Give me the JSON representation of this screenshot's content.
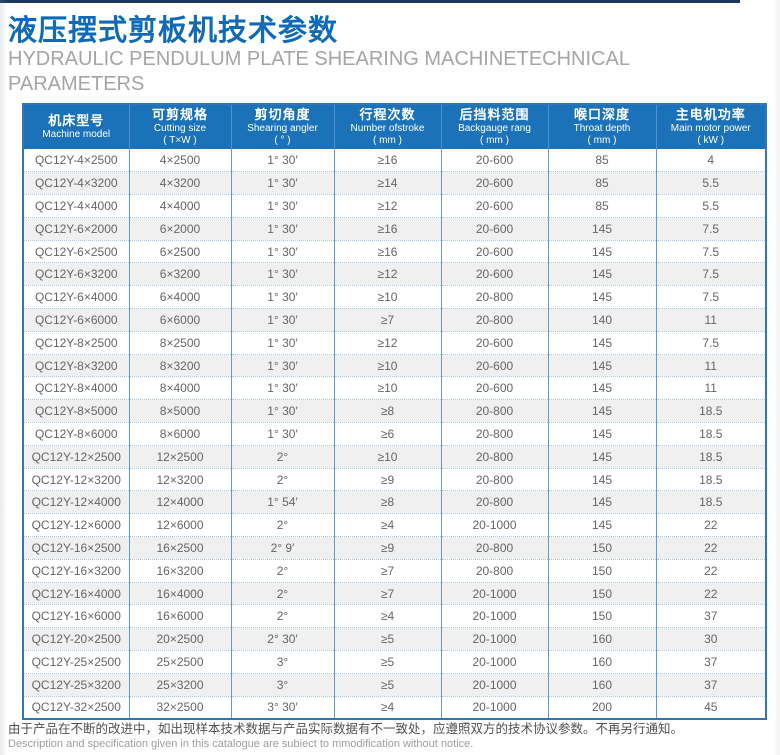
{
  "header": {
    "title_cn": "液压摆式剪板机技术参数",
    "subtitle_en": "HYDRAULIC PENDULUM PLATE SHEARING MACHINETECHNICAL PARAMETERS"
  },
  "colors": {
    "title_blue": "#0f6ab7",
    "header_bg": "#1b72b9",
    "table_border": "#2f77b6",
    "column_divider": "#5d9bd3",
    "row_dotted_divider": "#aec9e6",
    "alt_row_bg": "#f0f0f0",
    "body_text": "#666666",
    "subtitle_gray": "#a5a5a5"
  },
  "table": {
    "columns": [
      {
        "cn": "机床型号",
        "en": "Machine model",
        "unit": ""
      },
      {
        "cn": "可剪规格",
        "en": "Cutting size",
        "unit": "( T×W )"
      },
      {
        "cn": "剪切角度",
        "en": "Shearing angler",
        "unit": "( ° )"
      },
      {
        "cn": "行程次数",
        "en": "Number ofstroke",
        "unit": "( mm )"
      },
      {
        "cn": "后挡料范围",
        "en": "Backgauge rang",
        "unit": "( mm )"
      },
      {
        "cn": "喉口深度",
        "en": "Throat depth",
        "unit": "( mm )"
      },
      {
        "cn": "主电机功率",
        "en": "Main motor power",
        "unit": "( kW )"
      }
    ],
    "rows": [
      [
        "QC12Y-4×2500",
        "4×2500",
        "1° 30′",
        "≥16",
        "20-600",
        "85",
        "4"
      ],
      [
        "QC12Y-4×3200",
        "4×3200",
        "1° 30′",
        "≥14",
        "20-600",
        "85",
        "5.5"
      ],
      [
        "QC12Y-4×4000",
        "4×4000",
        "1° 30′",
        "≥12",
        "20-600",
        "85",
        "5.5"
      ],
      [
        "QC12Y-6×2000",
        "6×2000",
        "1° 30′",
        "≥16",
        "20-600",
        "145",
        "7.5"
      ],
      [
        "QC12Y-6×2500",
        "6×2500",
        "1° 30′",
        "≥16",
        "20-600",
        "145",
        "7.5"
      ],
      [
        "QC12Y-6×3200",
        "6×3200",
        "1° 30′",
        "≥12",
        "20-600",
        "145",
        "7.5"
      ],
      [
        "QC12Y-6×4000",
        "6×4000",
        "1° 30′",
        "≥10",
        "20-800",
        "145",
        "7.5"
      ],
      [
        "QC12Y-6×6000",
        "6×6000",
        "1° 30′",
        "≥7",
        "20-800",
        "140",
        "11"
      ],
      [
        "QC12Y-8×2500",
        "8×2500",
        "1° 30′",
        "≥12",
        "20-600",
        "145",
        "7.5"
      ],
      [
        "QC12Y-8×3200",
        "8×3200",
        "1° 30′",
        "≥10",
        "20-600",
        "145",
        "11"
      ],
      [
        "QC12Y-8×4000",
        "8×4000",
        "1° 30′",
        "≥10",
        "20-600",
        "145",
        "11"
      ],
      [
        "QC12Y-8×5000",
        "8×5000",
        "1° 30′",
        "≥8",
        "20-800",
        "145",
        "18.5"
      ],
      [
        "QC12Y-8×6000",
        "8×6000",
        "1° 30′",
        "≥6",
        "20-800",
        "145",
        "18.5"
      ],
      [
        "QC12Y-12×2500",
        "12×2500",
        "2°",
        "≥10",
        "20-800",
        "145",
        "18.5"
      ],
      [
        "QC12Y-12×3200",
        "12×3200",
        "2°",
        "≥9",
        "20-800",
        "145",
        "18.5"
      ],
      [
        "QC12Y-12×4000",
        "12×4000",
        "1° 54′",
        "≥8",
        "20-800",
        "145",
        "18.5"
      ],
      [
        "QC12Y-12×6000",
        "12×6000",
        "2°",
        "≥4",
        "20-1000",
        "145",
        "22"
      ],
      [
        "QC12Y-16×2500",
        "16×2500",
        "2° 9′",
        "≥9",
        "20-800",
        "150",
        "22"
      ],
      [
        "QC12Y-16×3200",
        "16×3200",
        "2°",
        "≥7",
        "20-800",
        "150",
        "22"
      ],
      [
        "QC12Y-16×4000",
        "16×4000",
        "2°",
        "≥7",
        "20-1000",
        "150",
        "22"
      ],
      [
        "QC12Y-16×6000",
        "16×6000",
        "2°",
        "≥4",
        "20-1000",
        "150",
        "37"
      ],
      [
        "QC12Y-20×2500",
        "20×2500",
        "2° 30′",
        "≥5",
        "20-1000",
        "160",
        "30"
      ],
      [
        "QC12Y-25×2500",
        "25×2500",
        "3°",
        "≥5",
        "20-1000",
        "160",
        "37"
      ],
      [
        "QC12Y-25×3200",
        "25×3200",
        "3°",
        "≥5",
        "20-1000",
        "160",
        "37"
      ],
      [
        "QC12Y-32×2500",
        "32×2500",
        "3° 30′",
        "≥4",
        "20-1000",
        "200",
        "45"
      ]
    ]
  },
  "footer": {
    "cn": "由于产品在不断的改进中，如出现样本技术数据与产品实际数据有不一致处，应遵照双方的技术协议参数。不再另行通知。",
    "en": "Description and specification given in this catalogue are subiect to mmodification without notice."
  }
}
